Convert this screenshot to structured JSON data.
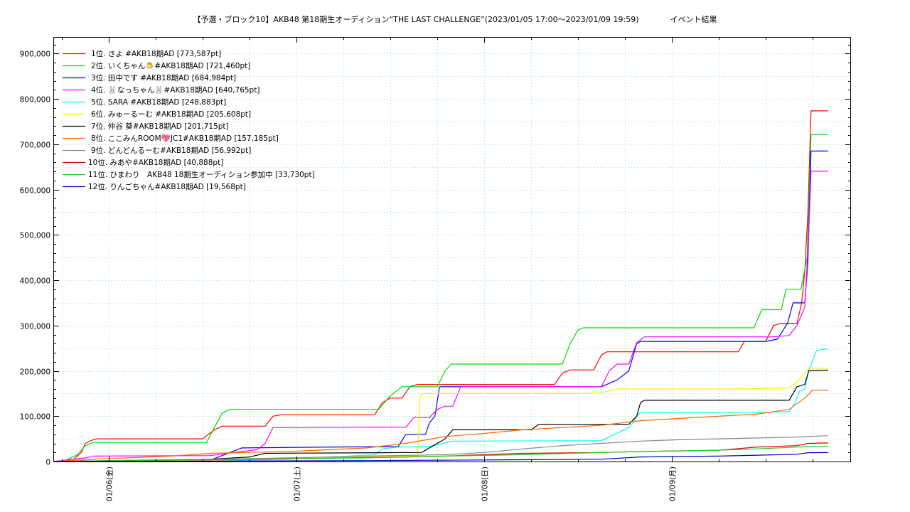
{
  "chart_data": {
    "type": "line",
    "title": "【予選・ブロック10】AKB48 第18期生オーディション“THE LAST CHALLENGE”(2023/01/05 17:00〜2023/01/09 19:59)　　　　イベント結果",
    "xlabel": "",
    "ylabel": "",
    "x_tick_labels": [
      "01/06(金)",
      "01/07(土)",
      "01/08(日)",
      "01/09(月)"
    ],
    "y_ticks": [
      0,
      100000,
      200000,
      300000,
      400000,
      500000,
      600000,
      700000,
      800000,
      900000
    ],
    "y_tick_labels": [
      "0",
      "100,000",
      "200,000",
      "300,000",
      "400,000",
      "500,000",
      "600,000",
      "700,000",
      "800,000",
      "900,000"
    ],
    "x_range_hours": [
      0,
      98.98
    ],
    "ylim": [
      0,
      935000
    ],
    "grid": true,
    "legend_position": "top-left",
    "x_unit_note": "hours since 2023/01/05 17:00",
    "series": [
      {
        "name": "1位. さよ #AKB18期AD [773,587pt]",
        "color": "#ff0000",
        "points": [
          [
            0,
            0
          ],
          [
            1.5,
            2000
          ],
          [
            2.5,
            5000
          ],
          [
            3.5,
            20000
          ],
          [
            4,
            40000
          ],
          [
            5,
            48000
          ],
          [
            5.5,
            50000
          ],
          [
            19,
            50000
          ],
          [
            20.5,
            70000
          ],
          [
            21.5,
            78000
          ],
          [
            27,
            78000
          ],
          [
            28,
            100000
          ],
          [
            29,
            103000
          ],
          [
            41,
            103000
          ],
          [
            42,
            130000
          ],
          [
            43,
            140000
          ],
          [
            44.5,
            140000
          ],
          [
            45.5,
            165000
          ],
          [
            46.5,
            170000
          ],
          [
            64,
            170000
          ],
          [
            65,
            195000
          ],
          [
            66,
            202000
          ],
          [
            69,
            202000
          ],
          [
            70,
            235000
          ],
          [
            70.7,
            242000
          ],
          [
            87.5,
            242000
          ],
          [
            88.3,
            265000
          ],
          [
            91,
            265000
          ],
          [
            92,
            300000
          ],
          [
            93,
            305000
          ],
          [
            95,
            305000
          ],
          [
            95.6,
            350000
          ],
          [
            96,
            420000
          ],
          [
            96.4,
            550000
          ],
          [
            96.8,
            773587
          ],
          [
            98.98,
            773587
          ]
        ]
      },
      {
        "name": "2位. いくちゃん🍮#AKB18期AD [721,460pt]",
        "color": "#00dd00",
        "points": [
          [
            0,
            0
          ],
          [
            1.5,
            3000
          ],
          [
            3,
            15000
          ],
          [
            4,
            35000
          ],
          [
            5,
            42000
          ],
          [
            19.5,
            42000
          ],
          [
            20.5,
            75000
          ],
          [
            21.5,
            107000
          ],
          [
            22.5,
            115000
          ],
          [
            41.5,
            115000
          ],
          [
            43,
            145000
          ],
          [
            44.5,
            165000
          ],
          [
            49,
            165000
          ],
          [
            50,
            200000
          ],
          [
            50.8,
            215000
          ],
          [
            65,
            215000
          ],
          [
            66,
            260000
          ],
          [
            67,
            290000
          ],
          [
            67.7,
            295000
          ],
          [
            89.5,
            295000
          ],
          [
            90.5,
            335000
          ],
          [
            93,
            335000
          ],
          [
            93.6,
            380000
          ],
          [
            95.5,
            380000
          ],
          [
            96.3,
            450000
          ],
          [
            96.8,
            721460
          ],
          [
            98.98,
            721460
          ]
        ]
      },
      {
        "name": "3位. 田中です #AKB18期AD [684,984pt]",
        "color": "#0000ff",
        "points": [
          [
            0,
            0
          ],
          [
            8,
            2000
          ],
          [
            20,
            3000
          ],
          [
            24,
            30000
          ],
          [
            36,
            32000
          ],
          [
            44,
            33000
          ],
          [
            45,
            60000
          ],
          [
            47.5,
            60000
          ],
          [
            48,
            85000
          ],
          [
            48.7,
            100000
          ],
          [
            49.3,
            165000
          ],
          [
            52.5,
            165000
          ],
          [
            70,
            165000
          ],
          [
            72,
            180000
          ],
          [
            73.5,
            200000
          ],
          [
            74.5,
            260000
          ],
          [
            75,
            265000
          ],
          [
            91,
            265000
          ],
          [
            92.5,
            270000
          ],
          [
            93.8,
            305000
          ],
          [
            94.5,
            350000
          ],
          [
            96,
            350000
          ],
          [
            96.4,
            440000
          ],
          [
            96.8,
            684984
          ],
          [
            98.98,
            684984
          ]
        ]
      },
      {
        "name": "4位. 🐰なっちゃん🐰#AKB18期AD [640,765pt]",
        "color": "#ff00ff",
        "points": [
          [
            0,
            0
          ],
          [
            4,
            8000
          ],
          [
            5,
            12000
          ],
          [
            20,
            13000
          ],
          [
            23,
            20000
          ],
          [
            26,
            26000
          ],
          [
            27,
            40000
          ],
          [
            28,
            75000
          ],
          [
            45,
            76000
          ],
          [
            46,
            97000
          ],
          [
            48,
            97000
          ],
          [
            49,
            115000
          ],
          [
            50,
            122000
          ],
          [
            51,
            122000
          ],
          [
            52,
            165000
          ],
          [
            70,
            165000
          ],
          [
            71,
            200000
          ],
          [
            72,
            215000
          ],
          [
            73.5,
            215000
          ],
          [
            74.5,
            262000
          ],
          [
            75.5,
            275000
          ],
          [
            92,
            275000
          ],
          [
            94,
            278000
          ],
          [
            95,
            300000
          ],
          [
            96,
            340000
          ],
          [
            96.5,
            500000
          ],
          [
            96.8,
            640765
          ],
          [
            98.98,
            640765
          ]
        ]
      },
      {
        "name": "5位. SARA #AKB18期AD [248,883pt]",
        "color": "#00ffff",
        "points": [
          [
            0,
            0
          ],
          [
            20,
            2000
          ],
          [
            30,
            5000
          ],
          [
            41,
            15000
          ],
          [
            42,
            28000
          ],
          [
            44,
            32000
          ],
          [
            48,
            33000
          ],
          [
            51,
            45000
          ],
          [
            70,
            46000
          ],
          [
            73.5,
            75000
          ],
          [
            74,
            85000
          ],
          [
            74.5,
            100000
          ],
          [
            75,
            108000
          ],
          [
            90,
            108000
          ],
          [
            94,
            110000
          ],
          [
            94.8,
            130000
          ],
          [
            95.3,
            155000
          ],
          [
            96,
            160000
          ],
          [
            96.5,
            200000
          ],
          [
            97.5,
            245000
          ],
          [
            98.98,
            248883
          ]
        ]
      },
      {
        "name": "6位. みゅーるーむ #AKB18期AD [205,608pt]",
        "color": "#ffee00",
        "points": [
          [
            0,
            0
          ],
          [
            20,
            2000
          ],
          [
            30,
            8000
          ],
          [
            41,
            10000
          ],
          [
            46.5,
            12000
          ],
          [
            46.8,
            145000
          ],
          [
            47.2,
            150000
          ],
          [
            68,
            150000
          ],
          [
            70,
            152000
          ],
          [
            72,
            160000
          ],
          [
            87,
            160000
          ],
          [
            94,
            162000
          ],
          [
            95,
            175000
          ],
          [
            96,
            195000
          ],
          [
            96.5,
            205608
          ],
          [
            98.98,
            205608
          ]
        ]
      },
      {
        "name": "7位. 仲谷 葵#AKB18期AD [201,715pt]",
        "color": "#000000",
        "points": [
          [
            0,
            0
          ],
          [
            10,
            2000
          ],
          [
            20,
            5000
          ],
          [
            25,
            10000
          ],
          [
            27,
            18000
          ],
          [
            47,
            20000
          ],
          [
            48.5,
            35000
          ],
          [
            50,
            50000
          ],
          [
            51,
            70000
          ],
          [
            61,
            70000
          ],
          [
            62,
            82000
          ],
          [
            73.5,
            82000
          ],
          [
            74.5,
            100000
          ],
          [
            75,
            130000
          ],
          [
            75.5,
            135000
          ],
          [
            94,
            135000
          ],
          [
            95,
            165000
          ],
          [
            96,
            170000
          ],
          [
            96.5,
            200000
          ],
          [
            98.98,
            201715
          ]
        ]
      },
      {
        "name": "8位. ここみんROOM💖JC1#AKB18期AD [157,185pt]",
        "color": "#ff6600",
        "points": [
          [
            0,
            0
          ],
          [
            5,
            5000
          ],
          [
            15,
            12000
          ],
          [
            20,
            18000
          ],
          [
            30,
            22000
          ],
          [
            40,
            30000
          ],
          [
            45,
            40000
          ],
          [
            50,
            55000
          ],
          [
            55,
            62000
          ],
          [
            60,
            70000
          ],
          [
            65,
            75000
          ],
          [
            70,
            80000
          ],
          [
            75,
            90000
          ],
          [
            80,
            95000
          ],
          [
            85,
            100000
          ],
          [
            90,
            105000
          ],
          [
            94,
            115000
          ],
          [
            96,
            140000
          ],
          [
            97,
            157185
          ],
          [
            98.98,
            157185
          ]
        ]
      },
      {
        "name": "9位. どんどんるーむ#AKB18期AD [56,992pt]",
        "color": "#888888",
        "points": [
          [
            0,
            0
          ],
          [
            10,
            3000
          ],
          [
            20,
            5000
          ],
          [
            30,
            8000
          ],
          [
            40,
            12000
          ],
          [
            50,
            15000
          ],
          [
            55,
            20000
          ],
          [
            60,
            28000
          ],
          [
            65,
            35000
          ],
          [
            70,
            40000
          ],
          [
            75,
            45000
          ],
          [
            80,
            48000
          ],
          [
            85,
            50000
          ],
          [
            90,
            52000
          ],
          [
            95,
            54000
          ],
          [
            98.98,
            56992
          ]
        ]
      },
      {
        "name": "10位. みあや#AKB18期AD [40,888pt]",
        "color": "#dd0000",
        "points": [
          [
            0,
            0
          ],
          [
            15,
            3000
          ],
          [
            30,
            6000
          ],
          [
            45,
            10000
          ],
          [
            50,
            12000
          ],
          [
            55,
            15000
          ],
          [
            60,
            18000
          ],
          [
            70,
            20000
          ],
          [
            75,
            22000
          ],
          [
            85,
            25000
          ],
          [
            90,
            32000
          ],
          [
            95,
            35000
          ],
          [
            96.5,
            40000
          ],
          [
            98.98,
            40888
          ]
        ]
      },
      {
        "name": "11位. ひまわり　AKB48 18期生オーディション参加中 [33,730pt]",
        "color": "#22cc22",
        "points": [
          [
            0,
            0
          ],
          [
            10,
            2000
          ],
          [
            25,
            5000
          ],
          [
            40,
            8000
          ],
          [
            50,
            12000
          ],
          [
            60,
            15000
          ],
          [
            70,
            20000
          ],
          [
            75,
            22000
          ],
          [
            85,
            25000
          ],
          [
            90,
            28000
          ],
          [
            95,
            32000
          ],
          [
            98.98,
            33730
          ]
        ]
      },
      {
        "name": "12位. りんごちゃん#AKB18期AD [19,568pt]",
        "color": "#0000cc",
        "points": [
          [
            0,
            0
          ],
          [
            20,
            1000
          ],
          [
            40,
            2000
          ],
          [
            50,
            3000
          ],
          [
            60,
            4000
          ],
          [
            70,
            5000
          ],
          [
            75,
            10000
          ],
          [
            85,
            12000
          ],
          [
            90,
            14000
          ],
          [
            95,
            16000
          ],
          [
            96.5,
            19568
          ],
          [
            98.98,
            19568
          ]
        ]
      }
    ]
  }
}
